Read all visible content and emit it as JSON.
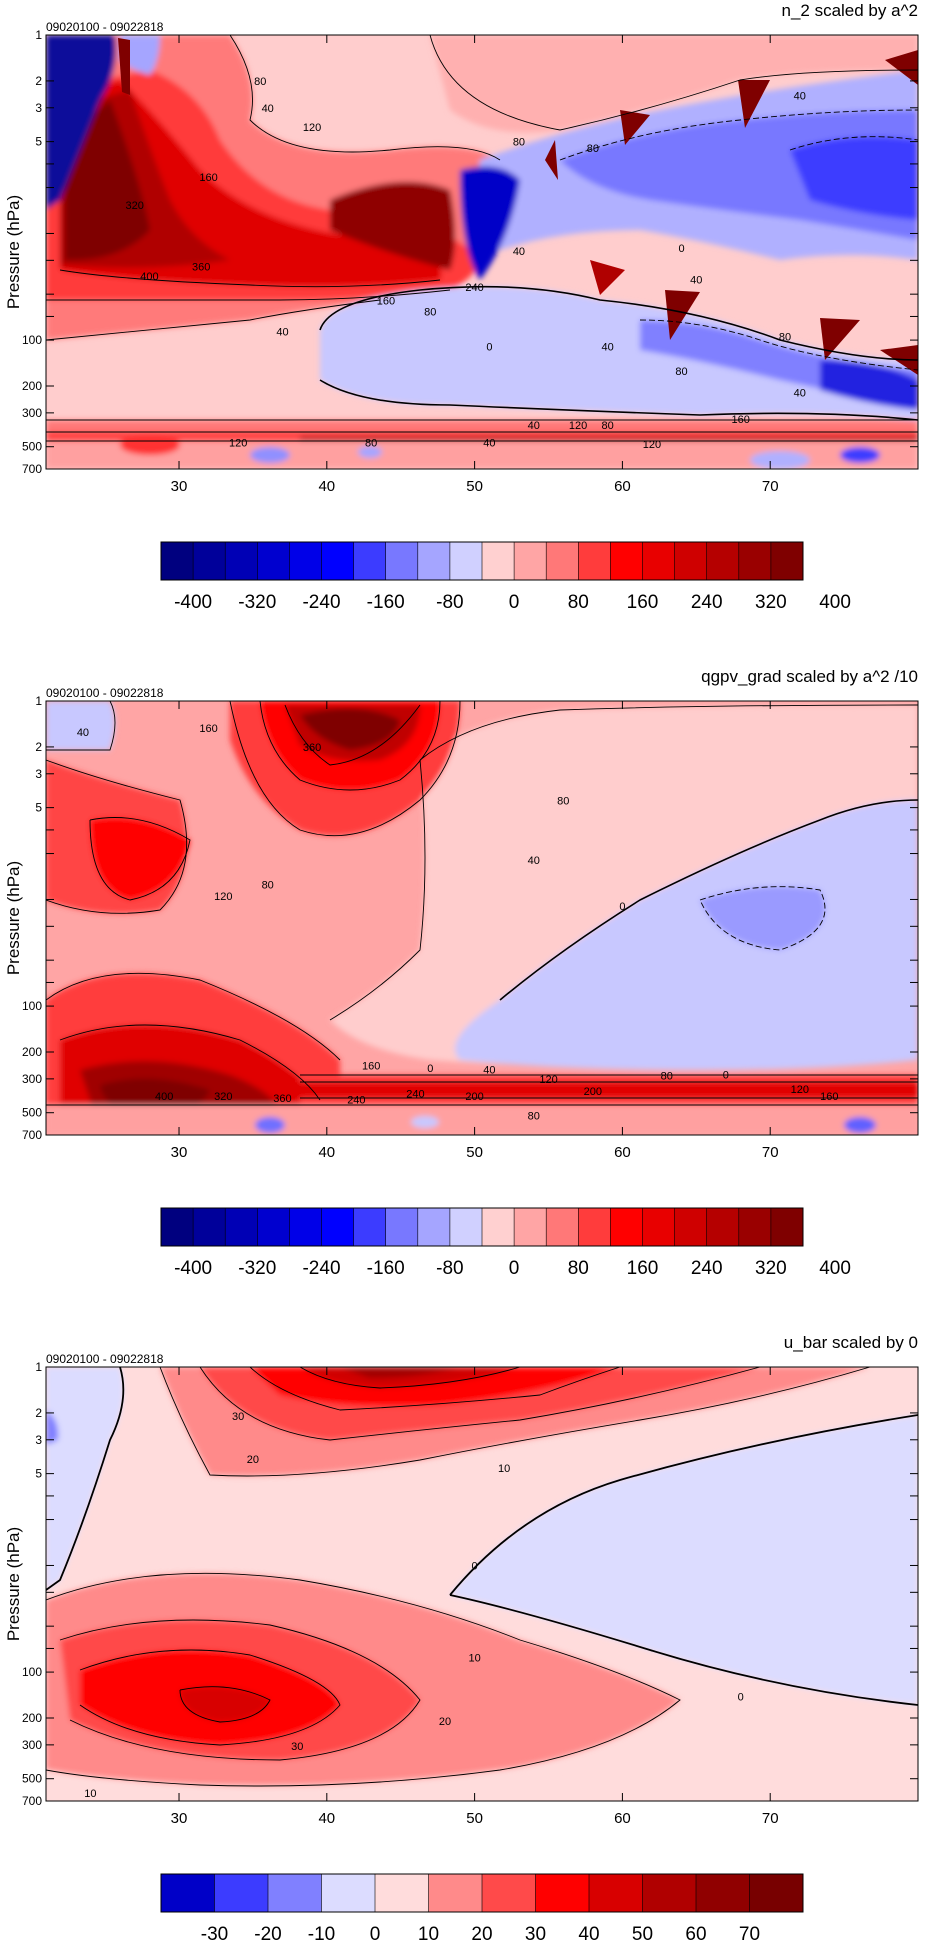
{
  "chart_data": [
    {
      "type": "filled-contour",
      "title": "n_2 scaled by a^2",
      "date_range": "09020100 - 09022818",
      "ylabel": "Pressure (hPa)",
      "yscale": "log",
      "ylim": [
        700,
        1
      ],
      "xlim": [
        21,
        80
      ],
      "x_ticks": [
        30,
        40,
        50,
        60,
        70
      ],
      "y_ticks": [
        1,
        2,
        3,
        5,
        7,
        10,
        20,
        30,
        50,
        70,
        100,
        200,
        300,
        500,
        700
      ],
      "y_tick_labels": [
        "1",
        "2",
        "3",
        "5",
        "",
        "",
        "",
        "",
        "",
        "",
        "100",
        "200",
        "300",
        "500",
        "700"
      ],
      "contour_labels": [
        {
          "x": 36,
          "p": 3,
          "text": "40"
        },
        {
          "x": 35.5,
          "p": 2,
          "text": "80"
        },
        {
          "x": 39,
          "p": 4,
          "text": "120"
        },
        {
          "x": 32,
          "p": 8.5,
          "text": "160"
        },
        {
          "x": 27,
          "p": 13,
          "text": "320"
        },
        {
          "x": 31.5,
          "p": 33,
          "text": "360"
        },
        {
          "x": 28,
          "p": 38,
          "text": "400"
        },
        {
          "x": 44,
          "p": 55,
          "text": "160"
        },
        {
          "x": 47,
          "p": 65,
          "text": "80"
        },
        {
          "x": 37,
          "p": 88,
          "text": "40"
        },
        {
          "x": 51,
          "p": 110,
          "text": "0"
        },
        {
          "x": 34,
          "p": 470,
          "text": "120"
        },
        {
          "x": 43,
          "p": 470,
          "text": "80"
        },
        {
          "x": 51,
          "p": 470,
          "text": "40"
        },
        {
          "x": 54,
          "p": 360,
          "text": "40"
        },
        {
          "x": 57,
          "p": 360,
          "text": "120"
        },
        {
          "x": 62,
          "p": 480,
          "text": "120"
        },
        {
          "x": 68,
          "p": 330,
          "text": "160"
        },
        {
          "x": 59,
          "p": 360,
          "text": "80"
        },
        {
          "x": 72,
          "p": 2.5,
          "text": "40"
        },
        {
          "x": 58,
          "p": 5.5,
          "text": "80"
        },
        {
          "x": 50,
          "p": 45,
          "text": "240"
        },
        {
          "x": 53,
          "p": 26,
          "text": "40"
        },
        {
          "x": 65,
          "p": 40,
          "text": "40"
        },
        {
          "x": 59,
          "p": 110,
          "text": "40"
        },
        {
          "x": 64,
          "p": 160,
          "text": "80"
        },
        {
          "x": 72,
          "p": 220,
          "text": "40"
        },
        {
          "x": 71,
          "p": 95,
          "text": "80"
        },
        {
          "x": 64,
          "p": 25,
          "text": "0"
        },
        {
          "x": 53,
          "p": 5,
          "text": "80"
        }
      ],
      "colorbar": {
        "labels": [
          "-400",
          "-320",
          "-240",
          "-160",
          "-80",
          "0",
          "80",
          "160",
          "240",
          "320",
          "400"
        ],
        "colors": [
          "#00007f",
          "#00009a",
          "#0000b5",
          "#0000cf",
          "#0000e8",
          "#0000ff",
          "#3c3cff",
          "#7878ff",
          "#a5a5ff",
          "#d0d0ff",
          "#ffd0d0",
          "#ffa5a5",
          "#ff7878",
          "#ff3c3c",
          "#ff0000",
          "#e80000",
          "#cf0000",
          "#b50000",
          "#9a0000",
          "#7f0000"
        ]
      }
    },
    {
      "type": "filled-contour",
      "title": "qgpv_grad scaled by a^2 /10",
      "date_range": "09020100 - 09022818",
      "ylabel": "Pressure (hPa)",
      "yscale": "log",
      "ylim": [
        700,
        1
      ],
      "xlim": [
        21,
        80
      ],
      "x_ticks": [
        30,
        40,
        50,
        60,
        70
      ],
      "y_ticks": [
        1,
        2,
        3,
        5,
        7,
        10,
        20,
        30,
        50,
        70,
        100,
        200,
        300,
        500,
        700
      ],
      "y_tick_labels": [
        "1",
        "2",
        "3",
        "5",
        "",
        "",
        "",
        "",
        "",
        "",
        "100",
        "200",
        "300",
        "500",
        "700"
      ],
      "contour_labels": [
        {
          "x": 23.5,
          "p": 1.6,
          "text": "40"
        },
        {
          "x": 32,
          "p": 1.5,
          "text": "160"
        },
        {
          "x": 39,
          "p": 2,
          "text": "360"
        },
        {
          "x": 56,
          "p": 4.5,
          "text": "80"
        },
        {
          "x": 54,
          "p": 11,
          "text": "40"
        },
        {
          "x": 60,
          "p": 22,
          "text": "0"
        },
        {
          "x": 33,
          "p": 19,
          "text": "120"
        },
        {
          "x": 36,
          "p": 16,
          "text": "80"
        },
        {
          "x": 43,
          "p": 245,
          "text": "160"
        },
        {
          "x": 47,
          "p": 255,
          "text": "0"
        },
        {
          "x": 51,
          "p": 260,
          "text": "40"
        },
        {
          "x": 55,
          "p": 300,
          "text": "120"
        },
        {
          "x": 58,
          "p": 360,
          "text": "200"
        },
        {
          "x": 63,
          "p": 285,
          "text": "80"
        },
        {
          "x": 67,
          "p": 280,
          "text": "0"
        },
        {
          "x": 72,
          "p": 350,
          "text": "120"
        },
        {
          "x": 74,
          "p": 390,
          "text": "160"
        },
        {
          "x": 29,
          "p": 390,
          "text": "400"
        },
        {
          "x": 33,
          "p": 390,
          "text": "320"
        },
        {
          "x": 37,
          "p": 400,
          "text": "360"
        },
        {
          "x": 42,
          "p": 410,
          "text": "240"
        },
        {
          "x": 46,
          "p": 375,
          "text": "240"
        },
        {
          "x": 50,
          "p": 390,
          "text": "200"
        },
        {
          "x": 54,
          "p": 520,
          "text": "80"
        }
      ],
      "colorbar": {
        "labels": [
          "-400",
          "-320",
          "-240",
          "-160",
          "-80",
          "0",
          "80",
          "160",
          "240",
          "320",
          "400"
        ],
        "colors": [
          "#00007f",
          "#00009a",
          "#0000b5",
          "#0000cf",
          "#0000e8",
          "#0000ff",
          "#3c3cff",
          "#7878ff",
          "#a5a5ff",
          "#d0d0ff",
          "#ffd0d0",
          "#ffa5a5",
          "#ff7878",
          "#ff3c3c",
          "#ff0000",
          "#e80000",
          "#cf0000",
          "#b50000",
          "#9a0000",
          "#7f0000"
        ]
      }
    },
    {
      "type": "filled-contour",
      "title": "u_bar scaled by 0",
      "date_range": "09020100 - 09022818",
      "ylabel": "Pressure (hPa)",
      "yscale": "log",
      "ylim": [
        700,
        1
      ],
      "xlim": [
        21,
        80
      ],
      "x_ticks": [
        30,
        40,
        50,
        60,
        70
      ],
      "y_ticks": [
        1,
        2,
        3,
        5,
        7,
        10,
        20,
        30,
        50,
        70,
        100,
        200,
        300,
        500,
        700
      ],
      "y_tick_labels": [
        "1",
        "2",
        "3",
        "5",
        "",
        "",
        "",
        "",
        "",
        "",
        "100",
        "200",
        "300",
        "500",
        "700"
      ],
      "contour_labels": [
        {
          "x": 34,
          "p": 2.1,
          "text": "30"
        },
        {
          "x": 35,
          "p": 4,
          "text": "20"
        },
        {
          "x": 52,
          "p": 4.6,
          "text": "10"
        },
        {
          "x": 50,
          "p": 20,
          "text": "0"
        },
        {
          "x": 50,
          "p": 80,
          "text": "10"
        },
        {
          "x": 68,
          "p": 145,
          "text": "0"
        },
        {
          "x": 48,
          "p": 210,
          "text": "20"
        },
        {
          "x": 38,
          "p": 305,
          "text": "30"
        },
        {
          "x": 24,
          "p": 620,
          "text": "10"
        }
      ],
      "colorbar": {
        "labels": [
          "-30",
          "-20",
          "-10",
          "0",
          "10",
          "20",
          "30",
          "40",
          "50",
          "60",
          "70"
        ],
        "colors": [
          "#0000c8",
          "#3c3cff",
          "#8080ff",
          "#dcdcff",
          "#ffdcdc",
          "#ff8a8a",
          "#ff4a4a",
          "#ff0000",
          "#d80000",
          "#b00000",
          "#900000",
          "#780000"
        ]
      }
    }
  ]
}
